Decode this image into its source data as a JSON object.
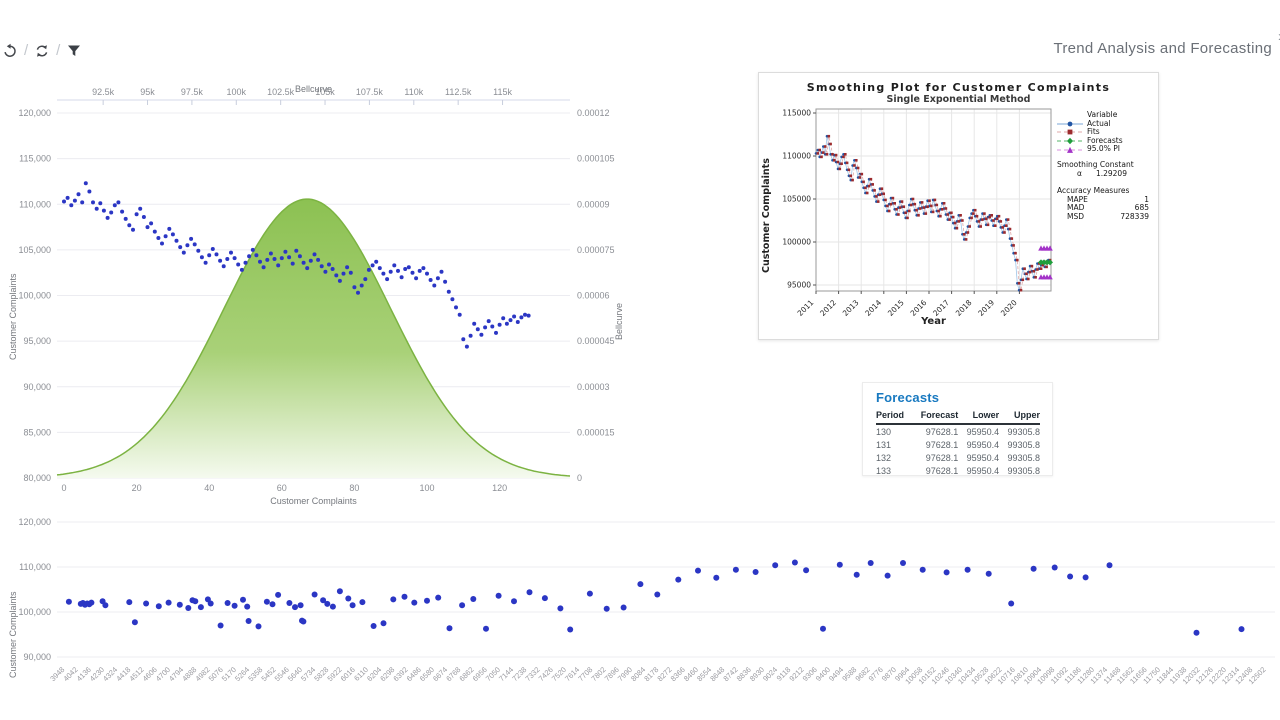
{
  "header": {
    "title": "Trend Analysis and Forecasting",
    "corner_glyph": "›",
    "toolbar_icons": [
      "undo-icon",
      "sync-icon",
      "filter-icon"
    ]
  },
  "forecasts_card": {
    "title": "Forecasts",
    "columns": [
      "Period",
      "Forecast",
      "Lower",
      "Upper"
    ],
    "rows": [
      [
        "130",
        "97628.1",
        "95950.4",
        "99305.8"
      ],
      [
        "131",
        "97628.1",
        "95950.4",
        "99305.8"
      ],
      [
        "132",
        "97628.1",
        "95950.4",
        "99305.8"
      ],
      [
        "133",
        "97628.1",
        "95950.4",
        "99305.8"
      ]
    ]
  },
  "colors": {
    "scatter_dot": "#2b36c4",
    "bell_top": "#8cc152",
    "bell_bottom": "#f5faef",
    "bell_stroke": "#7cb342",
    "grid": "#ececf1",
    "actual_marker": "#2255a4",
    "actual_line": "#9fc5e8",
    "fits_marker": "#9c2b2e",
    "fits_line": "#dfa8a8",
    "forecast_marker": "#1f9e3c",
    "pi_marker": "#a333c8",
    "pi_line": "#d98fdf",
    "forecasts_title": "#1879c0"
  },
  "chart_data": [
    {
      "id": "bellcurve-combo",
      "type": "scatter+area",
      "x_top": {
        "label": "Bellcurve",
        "ticks": [
          "92.5k",
          "95k",
          "97.5k",
          "100k",
          "102.5k",
          "105k",
          "107.5k",
          "110k",
          "112.5k",
          "115k"
        ],
        "tick_values_k": [
          92.5,
          95,
          97.5,
          100,
          102.5,
          105,
          107.5,
          110,
          112.5,
          115
        ],
        "range_k": [
          89.9,
          118.8
        ]
      },
      "y_left": {
        "label": "Customer Complaints",
        "ticks": [
          "120,000",
          "115,000",
          "110,000",
          "105,000",
          "100,000",
          "95,000",
          "90,000",
          "85,000",
          "80,000"
        ],
        "range": [
          80000,
          120000
        ]
      },
      "y_right": {
        "label": "Bellcurve",
        "ticks": [
          "0.00012",
          "0.000105",
          "0.00009",
          "0.000075",
          "0.00006",
          "0.000045",
          "0.00003",
          "0.000015",
          "0"
        ],
        "range": [
          0,
          0.00012
        ]
      },
      "x_bottom": {
        "label": "Customer Complaints",
        "ticks": [
          0,
          20,
          40,
          60,
          80,
          100,
          120
        ]
      },
      "bell": {
        "mean": 104000,
        "sigma": 4700,
        "peak": 9.17e-05
      },
      "scatter_values": [
        110300,
        110700,
        109900,
        110400,
        111100,
        110200,
        112300,
        111400,
        110200,
        109500,
        110100,
        109300,
        108500,
        109100,
        109900,
        110200,
        109200,
        108400,
        107700,
        107200,
        108900,
        109500,
        108600,
        107500,
        107900,
        107000,
        106300,
        105700,
        106500,
        107300,
        106700,
        106000,
        105300,
        104700,
        105500,
        106200,
        105600,
        104900,
        104200,
        103600,
        104400,
        105100,
        104500,
        103800,
        103200,
        104000,
        104700,
        104100,
        103400,
        102800,
        103600,
        104300,
        105000,
        104400,
        103700,
        103100,
        103900,
        104600,
        104000,
        103300,
        104100,
        104800,
        104200,
        103500,
        104900,
        104300,
        103600,
        103000,
        103800,
        104500,
        103900,
        103200,
        102600,
        103400,
        102900,
        102200,
        101600,
        102400,
        103100,
        102500,
        100900,
        100300,
        101100,
        101800,
        102800,
        103300,
        103700,
        103000,
        102400,
        101800,
        102600,
        103300,
        102700,
        102000,
        102900,
        103100,
        102500,
        101900,
        102700,
        103000,
        102400,
        101700,
        101100,
        101900,
        102600,
        101500,
        100400,
        99600,
        98700,
        97900,
        95200,
        94400,
        95600,
        96900,
        96300,
        95700,
        96500,
        97200,
        96600,
        95900,
        96800,
        97500,
        96900,
        97300,
        97700,
        97100,
        97600,
        97900,
        97800
      ]
    },
    {
      "id": "smoothing-plot",
      "type": "line",
      "title": "Smoothing Plot for Customer Complaints",
      "subtitle": "Single Exponential Method",
      "xlabel": "Year",
      "ylabel": "Customer Complaints",
      "x_ticks": [
        2011,
        2012,
        2013,
        2014,
        2015,
        2016,
        2017,
        2018,
        2019,
        2020
      ],
      "y_ticks": [
        115000,
        110000,
        105000,
        100000,
        95000
      ],
      "legend": {
        "header": "Variable",
        "items": [
          {
            "label": "Actual",
            "marker": "circle"
          },
          {
            "label": "Fits",
            "marker": "square"
          },
          {
            "label": "Forecasts",
            "marker": "diamond"
          },
          {
            "label": "95.0% PI",
            "marker": "triangle"
          }
        ]
      },
      "smoothing_constant_title": "Smoothing Constant",
      "alpha_symbol": "α",
      "alpha_value": "1.29209",
      "accuracy_title": "Accuracy Measures",
      "accuracy_rows": [
        {
          "name": "MAPE",
          "value": "1"
        },
        {
          "name": "MAD",
          "value": "685"
        },
        {
          "name": "MSD",
          "value": "728339"
        }
      ],
      "forecast": {
        "count": 4,
        "value": 97628.1,
        "lower": 95950.4,
        "upper": 99305.8
      }
    },
    {
      "id": "complaints-driver-scatter",
      "type": "scatter",
      "ylabel": "Customer Complaints",
      "y_ticks": [
        "120,000",
        "110,000",
        "100,000",
        "90,000"
      ],
      "y_tick_values": [
        120000,
        110000,
        100000,
        90000
      ],
      "x_ticks": [
        3948,
        4042,
        4136,
        4230,
        4324,
        4418,
        4512,
        4606,
        4700,
        4794,
        4888,
        4982,
        5076,
        5170,
        5264,
        5358,
        5452,
        5546,
        5640,
        5734,
        5828,
        5922,
        6016,
        6110,
        6204,
        6298,
        6392,
        6486,
        6580,
        6674,
        6768,
        6862,
        6956,
        7050,
        7144,
        7238,
        7332,
        7426,
        7520,
        7614,
        7708,
        7802,
        7896,
        7990,
        8084,
        8178,
        8272,
        8366,
        8460,
        8554,
        8648,
        8742,
        8836,
        8930,
        9024,
        9118,
        9212,
        9306,
        9400,
        9494,
        9588,
        9682,
        9776,
        9870,
        9964,
        10058,
        10152,
        10246,
        10340,
        10434,
        10528,
        10622,
        10716,
        10810,
        10904,
        10998,
        11092,
        11186,
        11280,
        11374,
        11468,
        11562,
        11656,
        11750,
        11844,
        11938,
        12032,
        12126,
        12220,
        12314,
        12408,
        12502
      ],
      "points": [
        [
          3990,
          102300
        ],
        [
          4075,
          101800
        ],
        [
          4090,
          102000
        ],
        [
          4105,
          101600
        ],
        [
          4120,
          101900
        ],
        [
          4135,
          101700
        ],
        [
          4150,
          102100
        ],
        [
          4230,
          102400
        ],
        [
          4250,
          101500
        ],
        [
          4420,
          102200
        ],
        [
          4460,
          97700
        ],
        [
          4540,
          101900
        ],
        [
          4630,
          101300
        ],
        [
          4700,
          102100
        ],
        [
          4780,
          101600
        ],
        [
          4840,
          100900
        ],
        [
          4870,
          102600
        ],
        [
          4890,
          102400
        ],
        [
          4930,
          101100
        ],
        [
          4980,
          102800
        ],
        [
          5000,
          101900
        ],
        [
          5070,
          97000
        ],
        [
          5120,
          102000
        ],
        [
          5170,
          101400
        ],
        [
          5230,
          102700
        ],
        [
          5260,
          101200
        ],
        [
          5270,
          98000
        ],
        [
          5340,
          96800
        ],
        [
          5400,
          102300
        ],
        [
          5440,
          101700
        ],
        [
          5480,
          103800
        ],
        [
          5560,
          102000
        ],
        [
          5600,
          101100
        ],
        [
          5640,
          101500
        ],
        [
          5650,
          98100
        ],
        [
          5660,
          97900
        ],
        [
          5740,
          103900
        ],
        [
          5800,
          102600
        ],
        [
          5830,
          101800
        ],
        [
          5870,
          101200
        ],
        [
          5920,
          104600
        ],
        [
          5980,
          103000
        ],
        [
          6010,
          101500
        ],
        [
          6080,
          102200
        ],
        [
          6160,
          96900
        ],
        [
          6230,
          97500
        ],
        [
          6300,
          102800
        ],
        [
          6380,
          103400
        ],
        [
          6450,
          102100
        ],
        [
          6540,
          102500
        ],
        [
          6620,
          103200
        ],
        [
          6700,
          96400
        ],
        [
          6790,
          101500
        ],
        [
          6870,
          102900
        ],
        [
          6960,
          96300
        ],
        [
          7050,
          103600
        ],
        [
          7160,
          102400
        ],
        [
          7270,
          104400
        ],
        [
          7380,
          103100
        ],
        [
          7490,
          100800
        ],
        [
          7560,
          96100
        ],
        [
          7700,
          104100
        ],
        [
          7820,
          100700
        ],
        [
          7940,
          101000
        ],
        [
          8060,
          106200
        ],
        [
          8180,
          103900
        ],
        [
          8330,
          107200
        ],
        [
          8470,
          109200
        ],
        [
          8600,
          107600
        ],
        [
          8740,
          109400
        ],
        [
          8880,
          108900
        ],
        [
          9020,
          110400
        ],
        [
          9160,
          111000
        ],
        [
          9240,
          109300
        ],
        [
          9360,
          96300
        ],
        [
          9480,
          110500
        ],
        [
          9600,
          108300
        ],
        [
          9700,
          110900
        ],
        [
          9820,
          108100
        ],
        [
          9930,
          110900
        ],
        [
          10070,
          109400
        ],
        [
          10240,
          108800
        ],
        [
          10390,
          109400
        ],
        [
          10540,
          108500
        ],
        [
          10700,
          101900
        ],
        [
          10860,
          109600
        ],
        [
          11010,
          109900
        ],
        [
          11120,
          107900
        ],
        [
          11230,
          107700
        ],
        [
          11400,
          110400
        ],
        [
          12020,
          95400
        ],
        [
          12340,
          96200
        ]
      ]
    }
  ]
}
